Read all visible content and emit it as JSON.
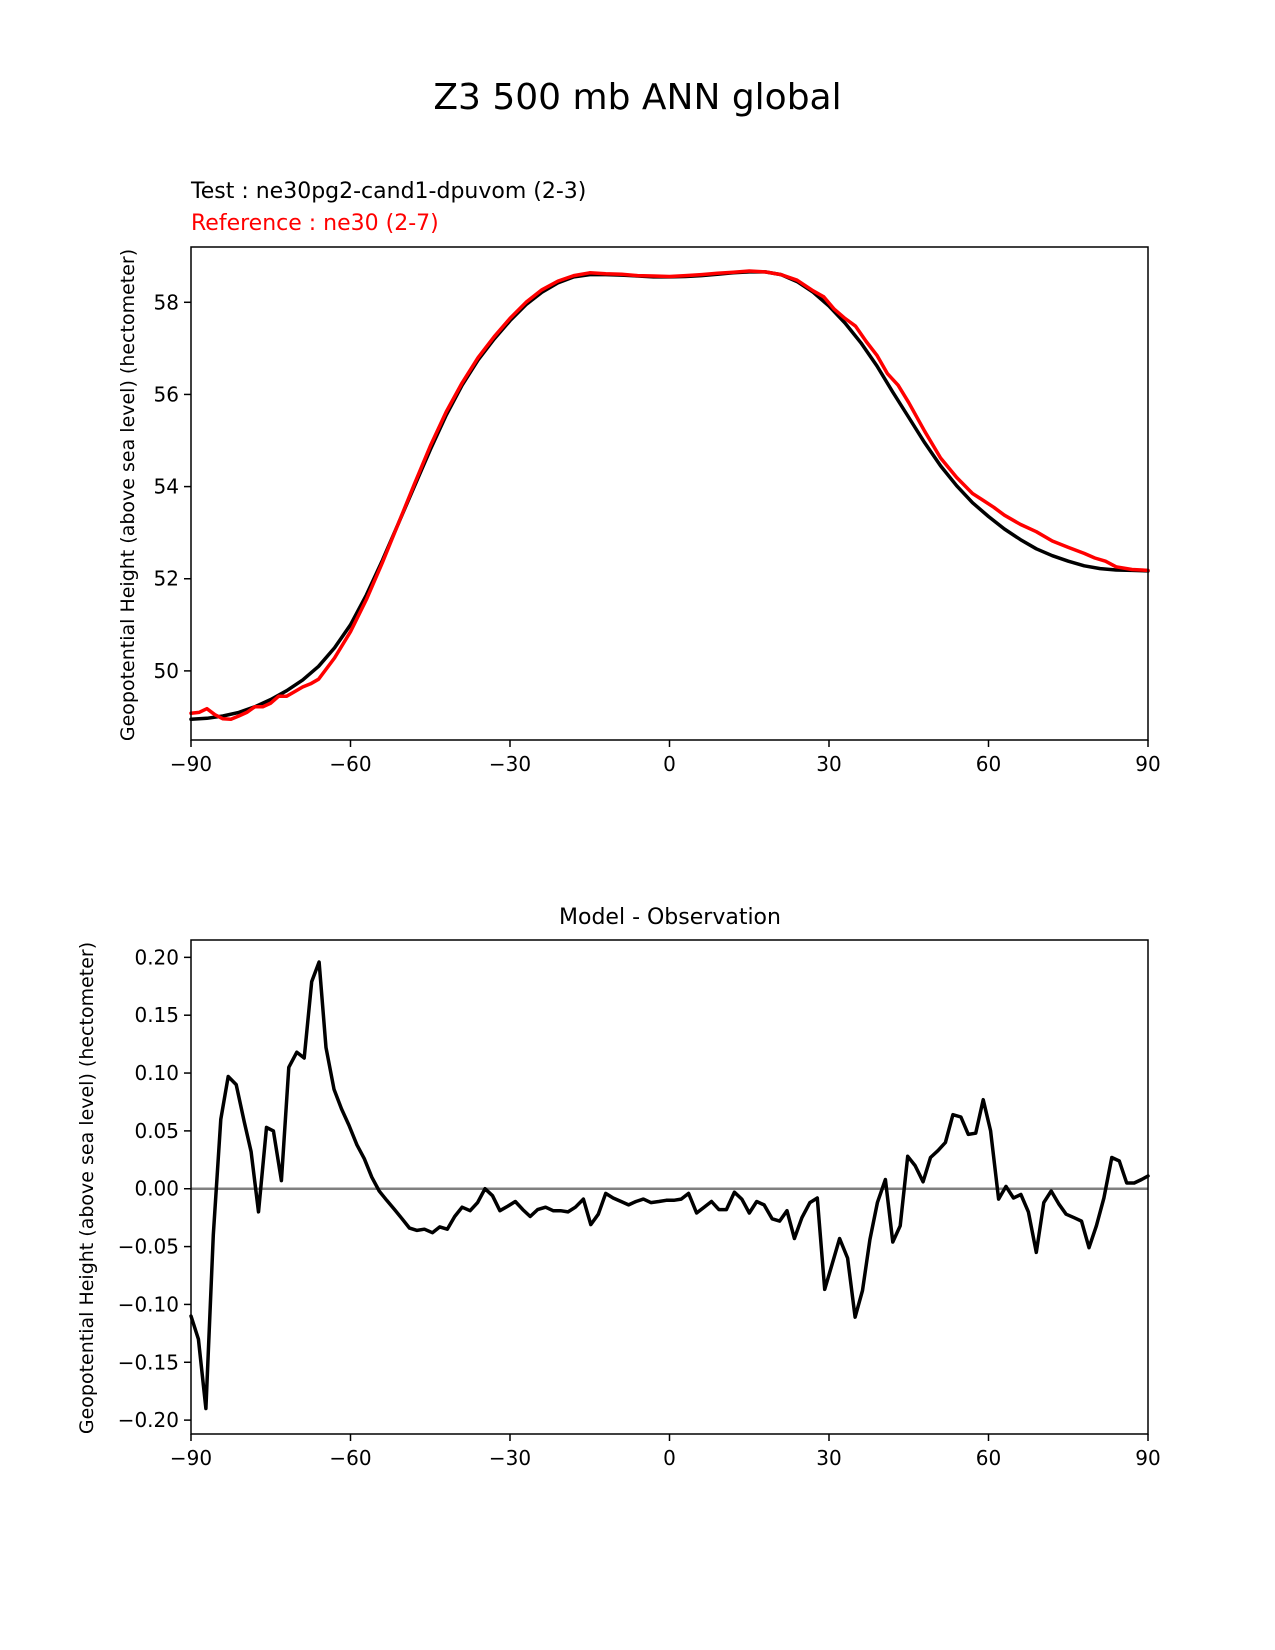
{
  "figure_title": "Z3 500 mb ANN global",
  "colors": {
    "test": "#000000",
    "reference": "#ff0000",
    "zero_line": "#808080",
    "axes": "#000000"
  },
  "chart_data": [
    {
      "type": "line",
      "test_label": "Test : ne30pg2-cand1-dpuvom (2-3)",
      "reference_label": "Reference : ne30 (2-7)",
      "xlabel": "",
      "ylabel": "Geopotential Height (above sea level) (hectometer)",
      "xlim": [
        -90,
        90
      ],
      "ylim": [
        48.5,
        59.2
      ],
      "xticks": [
        -90,
        -60,
        -30,
        0,
        30,
        60,
        90
      ],
      "xtick_labels": [
        "−90",
        "−60",
        "−30",
        "0",
        "30",
        "60",
        "90"
      ],
      "yticks": [
        50,
        52,
        54,
        56,
        58
      ],
      "ytick_labels": [
        "50",
        "52",
        "54",
        "56",
        "58"
      ],
      "series": [
        {
          "name": "test",
          "x": [
            -90,
            -87,
            -84,
            -81,
            -78,
            -75,
            -72,
            -69,
            -66,
            -63,
            -60,
            -57,
            -54,
            -51,
            -48,
            -45,
            -42,
            -39,
            -36,
            -33,
            -30,
            -27,
            -24,
            -21,
            -18,
            -15,
            -12,
            -9,
            -6,
            -3,
            0,
            3,
            6,
            9,
            12,
            15,
            18,
            21,
            24,
            27,
            30,
            33,
            36,
            39,
            42,
            45,
            48,
            51,
            54,
            57,
            60,
            63,
            66,
            69,
            72,
            75,
            78,
            81,
            84,
            87,
            90
          ],
          "values": [
            48.95,
            48.97,
            49.02,
            49.1,
            49.22,
            49.38,
            49.57,
            49.8,
            50.1,
            50.5,
            51.0,
            51.65,
            52.4,
            53.2,
            54.0,
            54.8,
            55.55,
            56.2,
            56.75,
            57.2,
            57.6,
            57.95,
            58.22,
            58.42,
            58.55,
            58.6,
            58.6,
            58.59,
            58.57,
            58.55,
            58.55,
            58.56,
            58.58,
            58.61,
            58.64,
            58.66,
            58.66,
            58.6,
            58.45,
            58.22,
            57.92,
            57.55,
            57.12,
            56.62,
            56.05,
            55.5,
            54.95,
            54.45,
            54.02,
            53.65,
            53.35,
            53.08,
            52.85,
            52.65,
            52.5,
            52.38,
            52.28,
            52.22,
            52.19,
            52.18,
            52.17
          ]
        },
        {
          "name": "reference",
          "x": [
            -90,
            -88.5,
            -87,
            -85.5,
            -84,
            -82.5,
            -81,
            -79.5,
            -78,
            -76.5,
            -75,
            -73.5,
            -72,
            -70.5,
            -69,
            -67.5,
            -66,
            -63,
            -60,
            -57,
            -54,
            -51,
            -48,
            -45,
            -42,
            -39,
            -36,
            -33,
            -30,
            -27,
            -24,
            -21,
            -18,
            -15,
            -12,
            -9,
            -6,
            -3,
            0,
            3,
            6,
            9,
            12,
            15,
            18,
            21,
            24,
            27,
            29,
            31,
            33,
            35,
            37,
            39,
            41,
            43,
            45,
            48,
            51,
            54,
            57,
            59,
            61,
            63,
            66,
            69,
            72,
            75,
            78,
            80,
            82,
            84,
            87,
            90
          ],
          "values": [
            49.08,
            49.1,
            49.18,
            49.05,
            48.96,
            48.95,
            49.02,
            49.1,
            49.22,
            49.22,
            49.3,
            49.45,
            49.45,
            49.55,
            49.65,
            49.72,
            49.82,
            50.28,
            50.85,
            51.55,
            52.35,
            53.2,
            54.05,
            54.88,
            55.62,
            56.25,
            56.8,
            57.25,
            57.65,
            58.0,
            58.27,
            58.46,
            58.58,
            58.64,
            58.62,
            58.61,
            58.58,
            58.57,
            58.56,
            58.58,
            58.6,
            58.63,
            58.65,
            58.68,
            58.66,
            58.6,
            58.48,
            58.25,
            58.12,
            57.85,
            57.65,
            57.48,
            57.15,
            56.85,
            56.45,
            56.2,
            55.82,
            55.2,
            54.62,
            54.2,
            53.85,
            53.7,
            53.55,
            53.38,
            53.18,
            53.02,
            52.82,
            52.68,
            52.55,
            52.45,
            52.38,
            52.26,
            52.2,
            52.18
          ]
        }
      ]
    },
    {
      "type": "line",
      "title": "Model - Observation",
      "xlabel": "",
      "ylabel": "Geopotential Height (above sea level) (hectometer)",
      "xlim": [
        -90,
        90
      ],
      "ylim": [
        -0.212,
        0.215
      ],
      "xticks": [
        -90,
        -60,
        -30,
        0,
        30,
        60,
        90
      ],
      "xtick_labels": [
        "−90",
        "−60",
        "−30",
        "0",
        "30",
        "60",
        "90"
      ],
      "yticks": [
        0.2,
        0.15,
        0.1,
        0.05,
        0.0,
        -0.05,
        -0.1,
        -0.15,
        -0.2
      ],
      "ytick_labels": [
        "0.20",
        "0.15",
        "0.10",
        "0.05",
        "0.00",
        "−0.05",
        "−0.10",
        "−0.15",
        "−0.20"
      ],
      "zero_line": 0,
      "series": [
        {
          "name": "difference",
          "x": [
            -90,
            -88.6,
            -87.2,
            -85.8,
            -84.4,
            -83,
            -81.5,
            -80,
            -78.7,
            -77.3,
            -75.8,
            -74.5,
            -73,
            -71.6,
            -70.1,
            -68.7,
            -67.3,
            -65.9,
            -64.6,
            -63.1,
            -61.7,
            -60.3,
            -58.8,
            -57.4,
            -56,
            -54.6,
            -53.2,
            -51.7,
            -50.3,
            -48.9,
            -47.5,
            -46.1,
            -44.6,
            -43.2,
            -41.8,
            -40.4,
            -39,
            -37.5,
            -36.1,
            -34.7,
            -33.3,
            -31.9,
            -30.4,
            -29,
            -27.6,
            -26.2,
            -24.8,
            -23.3,
            -21.9,
            -20.5,
            -19.1,
            -17.7,
            -16.2,
            -14.8,
            -13.4,
            -12,
            -10.6,
            -9.1,
            -7.7,
            -6.3,
            -4.9,
            -3.5,
            -2,
            -0.6,
            0.8,
            2.2,
            3.6,
            5.1,
            6.5,
            7.9,
            9.3,
            10.7,
            12.2,
            13.6,
            15,
            16.4,
            17.8,
            19.3,
            20.7,
            22.1,
            23.5,
            24.9,
            26.4,
            27.8,
            29.2,
            30.6,
            32,
            33.5,
            34.9,
            36.3,
            37.7,
            39.1,
            40.6,
            42,
            43.4,
            44.8,
            46.2,
            47.7,
            49.1,
            50.5,
            51.9,
            53.3,
            54.8,
            56.2,
            57.6,
            59,
            60.4,
            61.9,
            63.3,
            64.7,
            66.1,
            67.5,
            69,
            70.4,
            71.8,
            73.2,
            74.6,
            76.1,
            77.5,
            78.9,
            80.3,
            81.7,
            83.2,
            84.6,
            86,
            87.4,
            88.8,
            90
          ],
          "values": [
            -0.11,
            -0.13,
            -0.19,
            -0.04,
            0.06,
            0.097,
            0.09,
            0.058,
            0.032,
            -0.02,
            0.053,
            0.05,
            0.007,
            0.105,
            0.118,
            0.113,
            0.179,
            0.196,
            0.122,
            0.086,
            0.069,
            0.055,
            0.038,
            0.026,
            0.01,
            -0.002,
            -0.01,
            -0.018,
            -0.026,
            -0.034,
            -0.036,
            -0.035,
            -0.038,
            -0.033,
            -0.035,
            -0.024,
            -0.016,
            -0.019,
            -0.012,
            0.0,
            -0.006,
            -0.019,
            -0.015,
            -0.011,
            -0.018,
            -0.024,
            -0.018,
            -0.016,
            -0.019,
            -0.019,
            -0.02,
            -0.016,
            -0.009,
            -0.031,
            -0.022,
            -0.004,
            -0.008,
            -0.011,
            -0.014,
            -0.011,
            -0.009,
            -0.012,
            -0.011,
            -0.01,
            -0.01,
            -0.009,
            -0.004,
            -0.021,
            -0.016,
            -0.011,
            -0.018,
            -0.018,
            -0.003,
            -0.009,
            -0.021,
            -0.011,
            -0.014,
            -0.026,
            -0.028,
            -0.019,
            -0.043,
            -0.025,
            -0.012,
            -0.008,
            -0.087,
            -0.065,
            -0.043,
            -0.06,
            -0.111,
            -0.088,
            -0.044,
            -0.012,
            0.008,
            -0.046,
            -0.032,
            0.028,
            0.02,
            0.006,
            0.027,
            0.033,
            0.04,
            0.064,
            0.062,
            0.047,
            0.048,
            0.077,
            0.05,
            -0.009,
            0.002,
            -0.008,
            -0.005,
            -0.02,
            -0.055,
            -0.012,
            -0.002,
            -0.013,
            -0.022,
            -0.025,
            -0.028,
            -0.051,
            -0.032,
            -0.008,
            0.027,
            0.024,
            0.005,
            0.005,
            0.008,
            0.011
          ]
        }
      ]
    }
  ]
}
